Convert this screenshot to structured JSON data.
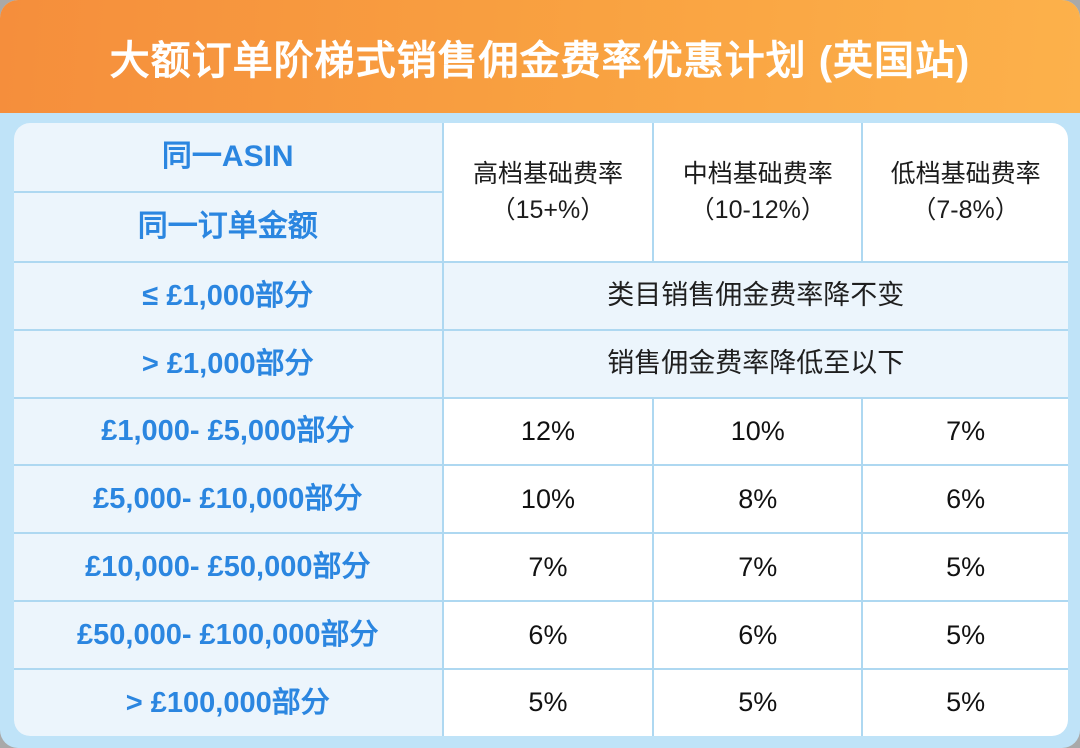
{
  "title": "大额订单阶梯式销售佣金费率优惠计划 (英国站)",
  "colors": {
    "banner_gradient_left": "#F58E3C",
    "banner_gradient_right": "#FCB14B",
    "page_background": "#BFE3F8",
    "light_cell_background": "#ECF5FC",
    "white_cell_background": "#FFFFFF",
    "grid_border": "#AED8F1",
    "blue_text": "#2B86E0",
    "dark_text": "#1F1F1F",
    "title_text": "#FFFFFF"
  },
  "table": {
    "corner_header": {
      "line1": "同一ASIN",
      "line2": "同一订单金额"
    },
    "rate_columns": [
      {
        "name": "高档基础费率",
        "range": "（15+%）"
      },
      {
        "name": "中档基础费率",
        "range": "（10-12%）"
      },
      {
        "name": "低档基础费率",
        "range": "（7-8%）"
      }
    ],
    "note_rows": [
      {
        "label": "≤ £1,000部分",
        "note": "类目销售佣金费率降不变"
      },
      {
        "label": "> £1,000部分",
        "note": "销售佣金费率降低至以下"
      }
    ],
    "tier_rows": [
      {
        "label": "£1,000- £5,000部分",
        "values": [
          "12%",
          "10%",
          "7%"
        ]
      },
      {
        "label": "£5,000- £10,000部分",
        "values": [
          "10%",
          "8%",
          "6%"
        ]
      },
      {
        "label": "£10,000- £50,000部分",
        "values": [
          "7%",
          "7%",
          "5%"
        ]
      },
      {
        "label": "£50,000- £100,000部分",
        "values": [
          "6%",
          "6%",
          "5%"
        ]
      },
      {
        "label": "> £100,000部分",
        "values": [
          "5%",
          "5%",
          "5%"
        ]
      }
    ]
  },
  "chart_data": {
    "type": "table",
    "title": "大额订单阶梯式销售佣金费率优惠计划 (英国站)",
    "columns": [
      "同一ASIN 同一订单金额",
      "高档基础费率（15+%）",
      "中档基础费率（10-12%）",
      "低档基础费率（7-8%）"
    ],
    "rows": [
      [
        "≤ £1,000部分",
        "类目销售佣金费率降不变",
        "类目销售佣金费率降不变",
        "类目销售佣金费率降不变"
      ],
      [
        "> £1,000部分",
        "销售佣金费率降低至以下",
        "销售佣金费率降低至以下",
        "销售佣金费率降低至以下"
      ],
      [
        "£1,000- £5,000部分",
        "12%",
        "10%",
        "7%"
      ],
      [
        "£5,000- £10,000部分",
        "10%",
        "8%",
        "6%"
      ],
      [
        "£10,000- £50,000部分",
        "7%",
        "7%",
        "5%"
      ],
      [
        "£50,000- £100,000部分",
        "6%",
        "6%",
        "5%"
      ],
      [
        "> £100,000部分",
        "5%",
        "5%",
        "5%"
      ]
    ]
  }
}
